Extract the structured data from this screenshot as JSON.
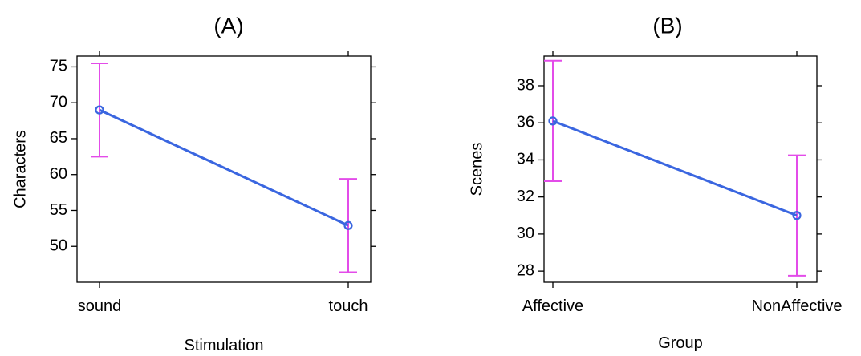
{
  "chart_data": [
    {
      "type": "line",
      "panel_label": "(A)",
      "xlabel": "Stimulation",
      "ylabel": "Characters",
      "categories": [
        "sound",
        "touch"
      ],
      "yticks": [
        50,
        55,
        60,
        65,
        70,
        75
      ],
      "ylim": [
        45,
        76.5
      ],
      "series": [
        {
          "values": [
            69.0,
            52.9
          ],
          "error_lower": [
            62.5,
            46.4
          ],
          "error_upper": [
            75.5,
            59.4
          ]
        }
      ],
      "grid": false,
      "line_color": "#3a66e0",
      "errorbar_color": "#e34ce9"
    },
    {
      "type": "line",
      "panel_label": "(B)",
      "xlabel": "Group",
      "ylabel": "Scenes",
      "categories": [
        "Affective",
        "NonAffective"
      ],
      "yticks": [
        28,
        30,
        32,
        34,
        36,
        38
      ],
      "ylim": [
        27.4,
        39.6
      ],
      "series": [
        {
          "values": [
            36.1,
            31.0
          ],
          "error_lower": [
            32.85,
            27.75
          ],
          "error_upper": [
            39.35,
            34.25
          ]
        }
      ],
      "grid": false,
      "line_color": "#3a66e0",
      "errorbar_color": "#e34ce9"
    }
  ]
}
